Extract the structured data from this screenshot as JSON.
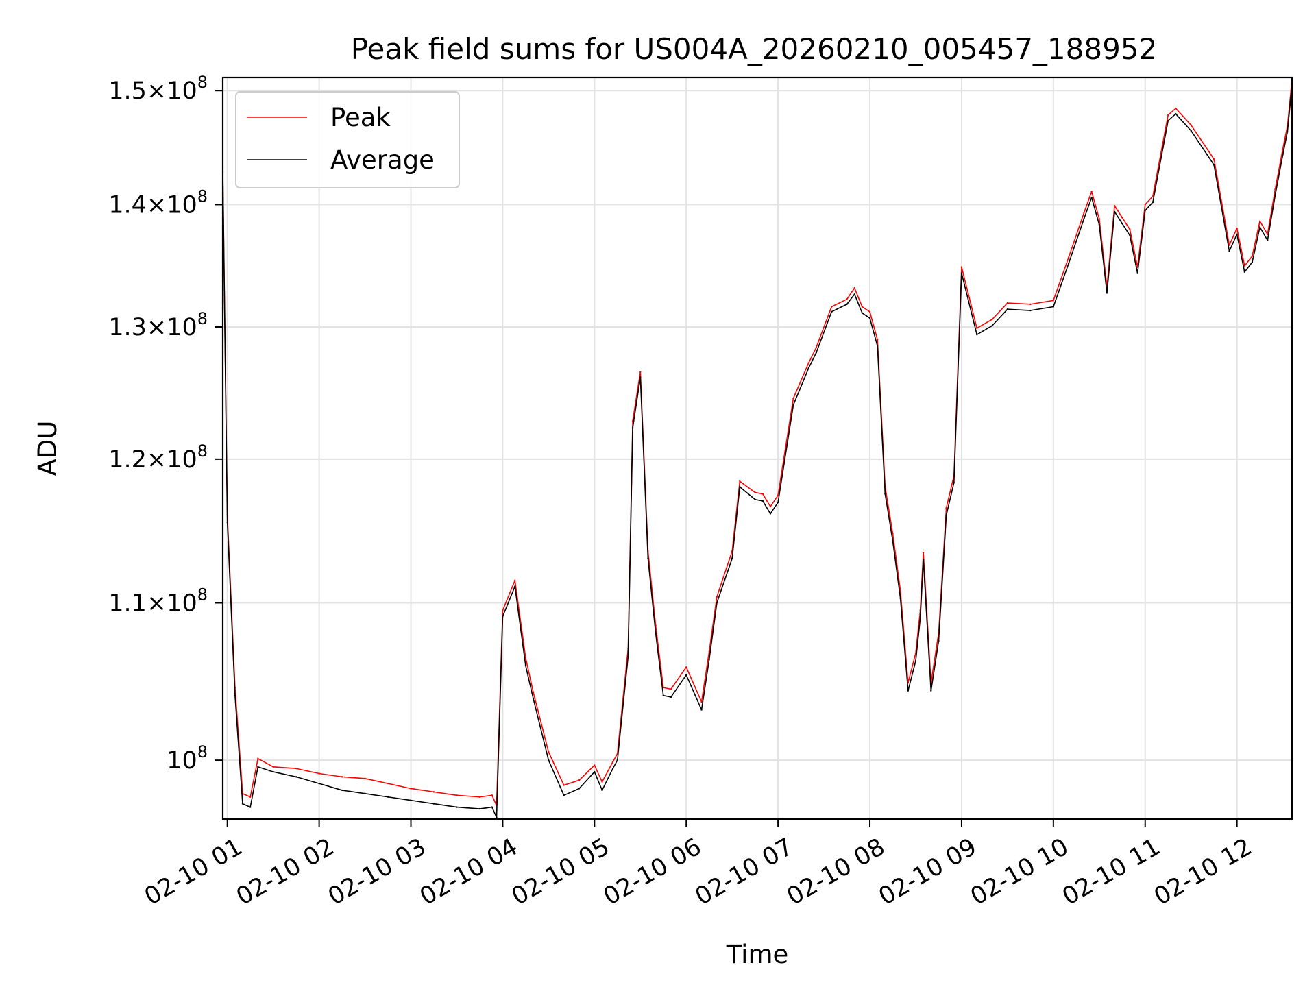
{
  "chart_data": {
    "type": "line",
    "title": "Peak field sums for US004A_20260210_005457_188952",
    "xlabel": "Time",
    "ylabel": "ADU",
    "yscale": "log",
    "xlim": [
      "2026-02-10 00:57",
      "2026-02-10 12:36"
    ],
    "ylim": [
      96500000,
      151200000
    ],
    "grid": true,
    "legend_placement": "upper left",
    "x_ticks": [
      {
        "value": "2026-02-10 01:00",
        "label": "02-10 01"
      },
      {
        "value": "2026-02-10 02:00",
        "label": "02-10 02"
      },
      {
        "value": "2026-02-10 03:00",
        "label": "02-10 03"
      },
      {
        "value": "2026-02-10 04:00",
        "label": "02-10 04"
      },
      {
        "value": "2026-02-10 05:00",
        "label": "02-10 05"
      },
      {
        "value": "2026-02-10 06:00",
        "label": "02-10 06"
      },
      {
        "value": "2026-02-10 07:00",
        "label": "02-10 07"
      },
      {
        "value": "2026-02-10 08:00",
        "label": "02-10 08"
      },
      {
        "value": "2026-02-10 09:00",
        "label": "02-10 09"
      },
      {
        "value": "2026-02-10 10:00",
        "label": "02-10 10"
      },
      {
        "value": "2026-02-10 11:00",
        "label": "02-10 11"
      },
      {
        "value": "2026-02-10 12:00",
        "label": "02-10 12"
      }
    ],
    "y_ticks": [
      {
        "value": 100000000,
        "mant": "",
        "exp": "8",
        "base": "10"
      },
      {
        "value": 110000000,
        "mant": "1.1",
        "exp": "8",
        "base": "10"
      },
      {
        "value": 120000000,
        "mant": "1.2",
        "exp": "8",
        "base": "10"
      },
      {
        "value": 130000000,
        "mant": "1.3",
        "exp": "8",
        "base": "10"
      },
      {
        "value": 140000000,
        "mant": "1.4",
        "exp": "8",
        "base": "10"
      },
      {
        "value": 150000000,
        "mant": "1.5",
        "exp": "8",
        "base": "10"
      }
    ],
    "series": [
      {
        "name": "Peak",
        "color": "#ff0000",
        "x": [
          "2026-02-10 00:57",
          "2026-02-10 01:00",
          "2026-02-10 01:05",
          "2026-02-10 01:10",
          "2026-02-10 01:15",
          "2026-02-10 01:20",
          "2026-02-10 01:30",
          "2026-02-10 01:45",
          "2026-02-10 02:00",
          "2026-02-10 02:15",
          "2026-02-10 02:30",
          "2026-02-10 02:45",
          "2026-02-10 03:00",
          "2026-02-10 03:15",
          "2026-02-10 03:30",
          "2026-02-10 03:45",
          "2026-02-10 03:53",
          "2026-02-10 03:56",
          "2026-02-10 04:00",
          "2026-02-10 04:08",
          "2026-02-10 04:15",
          "2026-02-10 04:20",
          "2026-02-10 04:30",
          "2026-02-10 04:40",
          "2026-02-10 04:50",
          "2026-02-10 05:00",
          "2026-02-10 05:05",
          "2026-02-10 05:12",
          "2026-02-10 05:15",
          "2026-02-10 05:22",
          "2026-02-10 05:25",
          "2026-02-10 05:30",
          "2026-02-10 05:35",
          "2026-02-10 05:40",
          "2026-02-10 05:45",
          "2026-02-10 05:50",
          "2026-02-10 06:00",
          "2026-02-10 06:10",
          "2026-02-10 06:15",
          "2026-02-10 06:20",
          "2026-02-10 06:30",
          "2026-02-10 06:35",
          "2026-02-10 06:45",
          "2026-02-10 06:50",
          "2026-02-10 06:55",
          "2026-02-10 07:00",
          "2026-02-10 07:10",
          "2026-02-10 07:20",
          "2026-02-10 07:25",
          "2026-02-10 07:35",
          "2026-02-10 07:45",
          "2026-02-10 07:50",
          "2026-02-10 07:55",
          "2026-02-10 08:00",
          "2026-02-10 08:05",
          "2026-02-10 08:10",
          "2026-02-10 08:15",
          "2026-02-10 08:20",
          "2026-02-10 08:25",
          "2026-02-10 08:30",
          "2026-02-10 08:33",
          "2026-02-10 08:35",
          "2026-02-10 08:40",
          "2026-02-10 08:45",
          "2026-02-10 08:50",
          "2026-02-10 08:55",
          "2026-02-10 09:00",
          "2026-02-10 09:10",
          "2026-02-10 09:20",
          "2026-02-10 09:30",
          "2026-02-10 09:45",
          "2026-02-10 10:00",
          "2026-02-10 10:10",
          "2026-02-10 10:20",
          "2026-02-10 10:25",
          "2026-02-10 10:30",
          "2026-02-10 10:35",
          "2026-02-10 10:40",
          "2026-02-10 10:45",
          "2026-02-10 10:50",
          "2026-02-10 10:55",
          "2026-02-10 11:00",
          "2026-02-10 11:05",
          "2026-02-10 11:15",
          "2026-02-10 11:20",
          "2026-02-10 11:30",
          "2026-02-10 11:45",
          "2026-02-10 11:55",
          "2026-02-10 12:00",
          "2026-02-10 12:05",
          "2026-02-10 12:10",
          "2026-02-10 12:15",
          "2026-02-10 12:20",
          "2026-02-10 12:25",
          "2026-02-10 12:30",
          "2026-02-10 12:33",
          "2026-02-10 12:36"
        ],
        "y": [
          143200000,
          116000000,
          104500000,
          98000000,
          97800000,
          100100000,
          99600000,
          99500000,
          99200000,
          99000000,
          98900000,
          98600000,
          98300000,
          98100000,
          97900000,
          97800000,
          97900000,
          97300000,
          109500000,
          111500000,
          106400000,
          104200000,
          100500000,
          98500000,
          98800000,
          99700000,
          98700000,
          99900000,
          100400000,
          107000000,
          122800000,
          126500000,
          113500000,
          108500000,
          104500000,
          104400000,
          105800000,
          103600000,
          106800000,
          110400000,
          113500000,
          118400000,
          117600000,
          117500000,
          116600000,
          117400000,
          124500000,
          127200000,
          128400000,
          131600000,
          132200000,
          133100000,
          131600000,
          131200000,
          129000000,
          118000000,
          114700000,
          110800000,
          104800000,
          106700000,
          109500000,
          113400000,
          104800000,
          108000000,
          116500000,
          118800000,
          134800000,
          129900000,
          130600000,
          131900000,
          131800000,
          132100000,
          135600000,
          139300000,
          141100000,
          138800000,
          133200000,
          139900000,
          138900000,
          137900000,
          134800000,
          140000000,
          140700000,
          147800000,
          148400000,
          146900000,
          143900000,
          136600000,
          138000000,
          134900000,
          135700000,
          138600000,
          137500000,
          141300000,
          144800000,
          146800000,
          151000000
        ]
      },
      {
        "name": "Average",
        "color": "#000000",
        "x": [
          "2026-02-10 00:57",
          "2026-02-10 01:00",
          "2026-02-10 01:05",
          "2026-02-10 01:10",
          "2026-02-10 01:15",
          "2026-02-10 01:20",
          "2026-02-10 01:30",
          "2026-02-10 01:45",
          "2026-02-10 02:00",
          "2026-02-10 02:15",
          "2026-02-10 02:30",
          "2026-02-10 02:45",
          "2026-02-10 03:00",
          "2026-02-10 03:15",
          "2026-02-10 03:30",
          "2026-02-10 03:45",
          "2026-02-10 03:53",
          "2026-02-10 03:56",
          "2026-02-10 04:00",
          "2026-02-10 04:08",
          "2026-02-10 04:15",
          "2026-02-10 04:20",
          "2026-02-10 04:30",
          "2026-02-10 04:40",
          "2026-02-10 04:50",
          "2026-02-10 05:00",
          "2026-02-10 05:05",
          "2026-02-10 05:12",
          "2026-02-10 05:15",
          "2026-02-10 05:22",
          "2026-02-10 05:25",
          "2026-02-10 05:30",
          "2026-02-10 05:35",
          "2026-02-10 05:40",
          "2026-02-10 05:45",
          "2026-02-10 05:50",
          "2026-02-10 06:00",
          "2026-02-10 06:10",
          "2026-02-10 06:15",
          "2026-02-10 06:20",
          "2026-02-10 06:30",
          "2026-02-10 06:35",
          "2026-02-10 06:45",
          "2026-02-10 06:50",
          "2026-02-10 06:55",
          "2026-02-10 07:00",
          "2026-02-10 07:10",
          "2026-02-10 07:20",
          "2026-02-10 07:25",
          "2026-02-10 07:35",
          "2026-02-10 07:45",
          "2026-02-10 07:50",
          "2026-02-10 07:55",
          "2026-02-10 08:00",
          "2026-02-10 08:05",
          "2026-02-10 08:10",
          "2026-02-10 08:15",
          "2026-02-10 08:20",
          "2026-02-10 08:25",
          "2026-02-10 08:30",
          "2026-02-10 08:33",
          "2026-02-10 08:35",
          "2026-02-10 08:40",
          "2026-02-10 08:45",
          "2026-02-10 08:50",
          "2026-02-10 08:55",
          "2026-02-10 09:00",
          "2026-02-10 09:10",
          "2026-02-10 09:20",
          "2026-02-10 09:30",
          "2026-02-10 09:45",
          "2026-02-10 10:00",
          "2026-02-10 10:10",
          "2026-02-10 10:20",
          "2026-02-10 10:25",
          "2026-02-10 10:30",
          "2026-02-10 10:35",
          "2026-02-10 10:40",
          "2026-02-10 10:45",
          "2026-02-10 10:50",
          "2026-02-10 10:55",
          "2026-02-10 11:00",
          "2026-02-10 11:05",
          "2026-02-10 11:15",
          "2026-02-10 11:20",
          "2026-02-10 11:30",
          "2026-02-10 11:45",
          "2026-02-10 11:55",
          "2026-02-10 12:00",
          "2026-02-10 12:05",
          "2026-02-10 12:10",
          "2026-02-10 12:15",
          "2026-02-10 12:20",
          "2026-02-10 12:25",
          "2026-02-10 12:30",
          "2026-02-10 12:33",
          "2026-02-10 12:36"
        ],
        "y": [
          142800000,
          115500000,
          104000000,
          97400000,
          97200000,
          99600000,
          99300000,
          99000000,
          98600000,
          98200000,
          98000000,
          97800000,
          97600000,
          97400000,
          97200000,
          97100000,
          97200000,
          96600000,
          109100000,
          111100000,
          105900000,
          103800000,
          100000000,
          97900000,
          98300000,
          99300000,
          98200000,
          99500000,
          100000000,
          106500000,
          122300000,
          126100000,
          113000000,
          108000000,
          104000000,
          103900000,
          105300000,
          103100000,
          106300000,
          110000000,
          113000000,
          118000000,
          117100000,
          117000000,
          116100000,
          116900000,
          124000000,
          126800000,
          128000000,
          131200000,
          131800000,
          132600000,
          131100000,
          130700000,
          128500000,
          117500000,
          114200000,
          110300000,
          104300000,
          106200000,
          109000000,
          112900000,
          104300000,
          107500000,
          116000000,
          118300000,
          134300000,
          129400000,
          130100000,
          131400000,
          131300000,
          131600000,
          135100000,
          138800000,
          140600000,
          138300000,
          132700000,
          139400000,
          138400000,
          137400000,
          134300000,
          139500000,
          140200000,
          147300000,
          147900000,
          146400000,
          143400000,
          136100000,
          137500000,
          134400000,
          135200000,
          138100000,
          137000000,
          140800000,
          144300000,
          146300000,
          150500000
        ]
      }
    ]
  }
}
